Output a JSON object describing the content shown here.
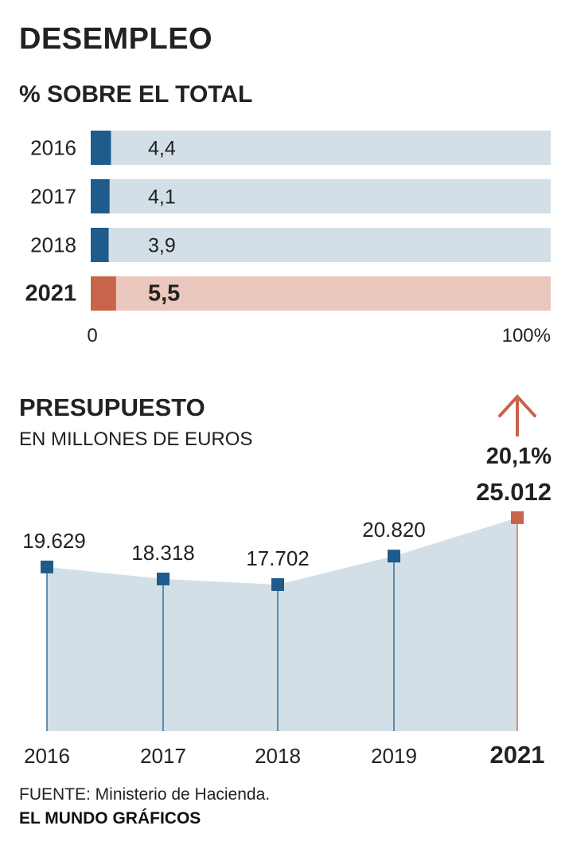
{
  "header": {
    "title": "DESEMPLEO",
    "subtitle": "% SOBRE EL TOTAL"
  },
  "budget_header": {
    "title": "PRESUPUESTO",
    "subtitle": "EN MILLONES DE EUROS"
  },
  "footer": {
    "source": "FUENTE: Ministerio de Hacienda.",
    "credit": "EL MUNDO GRÁFICOS"
  },
  "colors": {
    "primary": "#1f5c8b",
    "primary_track": "#d3dfe7",
    "highlight": "#c8644a",
    "highlight_track": "#ebc8bd",
    "area_fill": "#d3dfe7",
    "text": "#222222"
  },
  "chart_data": [
    {
      "type": "bar",
      "orientation": "horizontal",
      "categories": [
        "2016",
        "2017",
        "2018",
        "2021"
      ],
      "values": [
        4.4,
        4.1,
        3.9,
        5.5
      ],
      "value_labels": [
        "4,4",
        "4,1",
        "3,9",
        "5,5"
      ],
      "highlight_category": "2021",
      "xlim": [
        0,
        100
      ],
      "x_tick_labels": [
        "0",
        "100%"
      ]
    },
    {
      "type": "area",
      "x": [
        "2016",
        "2017",
        "2018",
        "2019",
        "2021"
      ],
      "values": [
        19629,
        18318,
        17702,
        20820,
        25012
      ],
      "value_labels": [
        "19.629",
        "18.318",
        "17.702",
        "20.820",
        "25.012"
      ],
      "highlight_category": "2021",
      "annotation": {
        "text": "20,1%",
        "icon": "arrow-up-icon"
      }
    }
  ]
}
